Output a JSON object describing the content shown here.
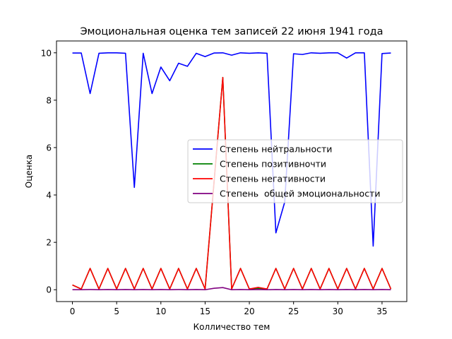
{
  "chart_data": {
    "type": "line",
    "title": "Эмоциональная оценка тем записей 22 июня 1941 года",
    "xlabel": "Колличество тем",
    "ylabel": "Оценка",
    "xlim": [
      -1.8,
      37.8
    ],
    "ylim": [
      -0.5,
      10.5
    ],
    "xticks": [
      0,
      5,
      10,
      15,
      20,
      25,
      30,
      35
    ],
    "yticks": [
      0,
      2,
      4,
      6,
      8,
      10
    ],
    "grid": false,
    "legend_position": "center-right",
    "x": [
      0,
      1,
      2,
      3,
      4,
      5,
      6,
      7,
      8,
      9,
      10,
      11,
      12,
      13,
      14,
      15,
      16,
      17,
      18,
      19,
      20,
      21,
      22,
      23,
      24,
      25,
      26,
      27,
      28,
      29,
      30,
      31,
      32,
      33,
      34,
      35,
      36
    ],
    "series": [
      {
        "name": "Степень нейтральности",
        "color": "#0000ff",
        "values": [
          9.99,
          9.99,
          8.28,
          9.98,
          10.0,
          10.0,
          9.98,
          4.32,
          9.98,
          8.28,
          9.4,
          8.82,
          9.56,
          9.43,
          9.98,
          9.84,
          9.99,
          10.0,
          9.9,
          10.0,
          9.98,
          10.0,
          9.98,
          2.4,
          3.7,
          9.96,
          9.93,
          10.0,
          9.98,
          10.0,
          10.0,
          9.78,
          10.0,
          10.0,
          1.84,
          9.97,
          9.99
        ]
      },
      {
        "name": "Степень позитивночти",
        "color": "#008000",
        "values": [
          0.2,
          0.03,
          0.9,
          0.03,
          0.9,
          0.03,
          0.9,
          0.03,
          0.9,
          0.03,
          0.9,
          0.03,
          0.9,
          0.03,
          0.9,
          0.03,
          4.5,
          8.96,
          0.03,
          0.9,
          0.03,
          0.06,
          0.03,
          0.9,
          0.03,
          0.9,
          0.03,
          0.9,
          0.03,
          0.9,
          0.03,
          0.9,
          0.03,
          0.9,
          0.03,
          0.9,
          0.03
        ]
      },
      {
        "name": "Степень негативности",
        "color": "#ff0000",
        "values": [
          0.2,
          0.03,
          0.9,
          0.03,
          0.9,
          0.03,
          0.9,
          0.03,
          0.9,
          0.03,
          0.9,
          0.03,
          0.9,
          0.03,
          0.9,
          0.03,
          4.5,
          8.96,
          0.03,
          0.9,
          0.03,
          0.1,
          0.03,
          0.9,
          0.03,
          0.9,
          0.03,
          0.9,
          0.03,
          0.9,
          0.03,
          0.9,
          0.03,
          0.9,
          0.03,
          0.9,
          0.03
        ]
      },
      {
        "name": "Степень  общей эмоциональности",
        "color": "#800080",
        "values": [
          0.0,
          0.0,
          0.01,
          0.0,
          0.01,
          0.0,
          0.01,
          0.0,
          0.01,
          0.0,
          0.01,
          0.0,
          0.01,
          0.0,
          0.01,
          0.0,
          0.06,
          0.09,
          0.0,
          0.01,
          0.0,
          0.01,
          0.0,
          0.01,
          0.0,
          0.01,
          0.0,
          0.01,
          0.0,
          0.01,
          0.0,
          0.01,
          0.0,
          0.01,
          0.0,
          0.01,
          0.0
        ]
      }
    ]
  }
}
